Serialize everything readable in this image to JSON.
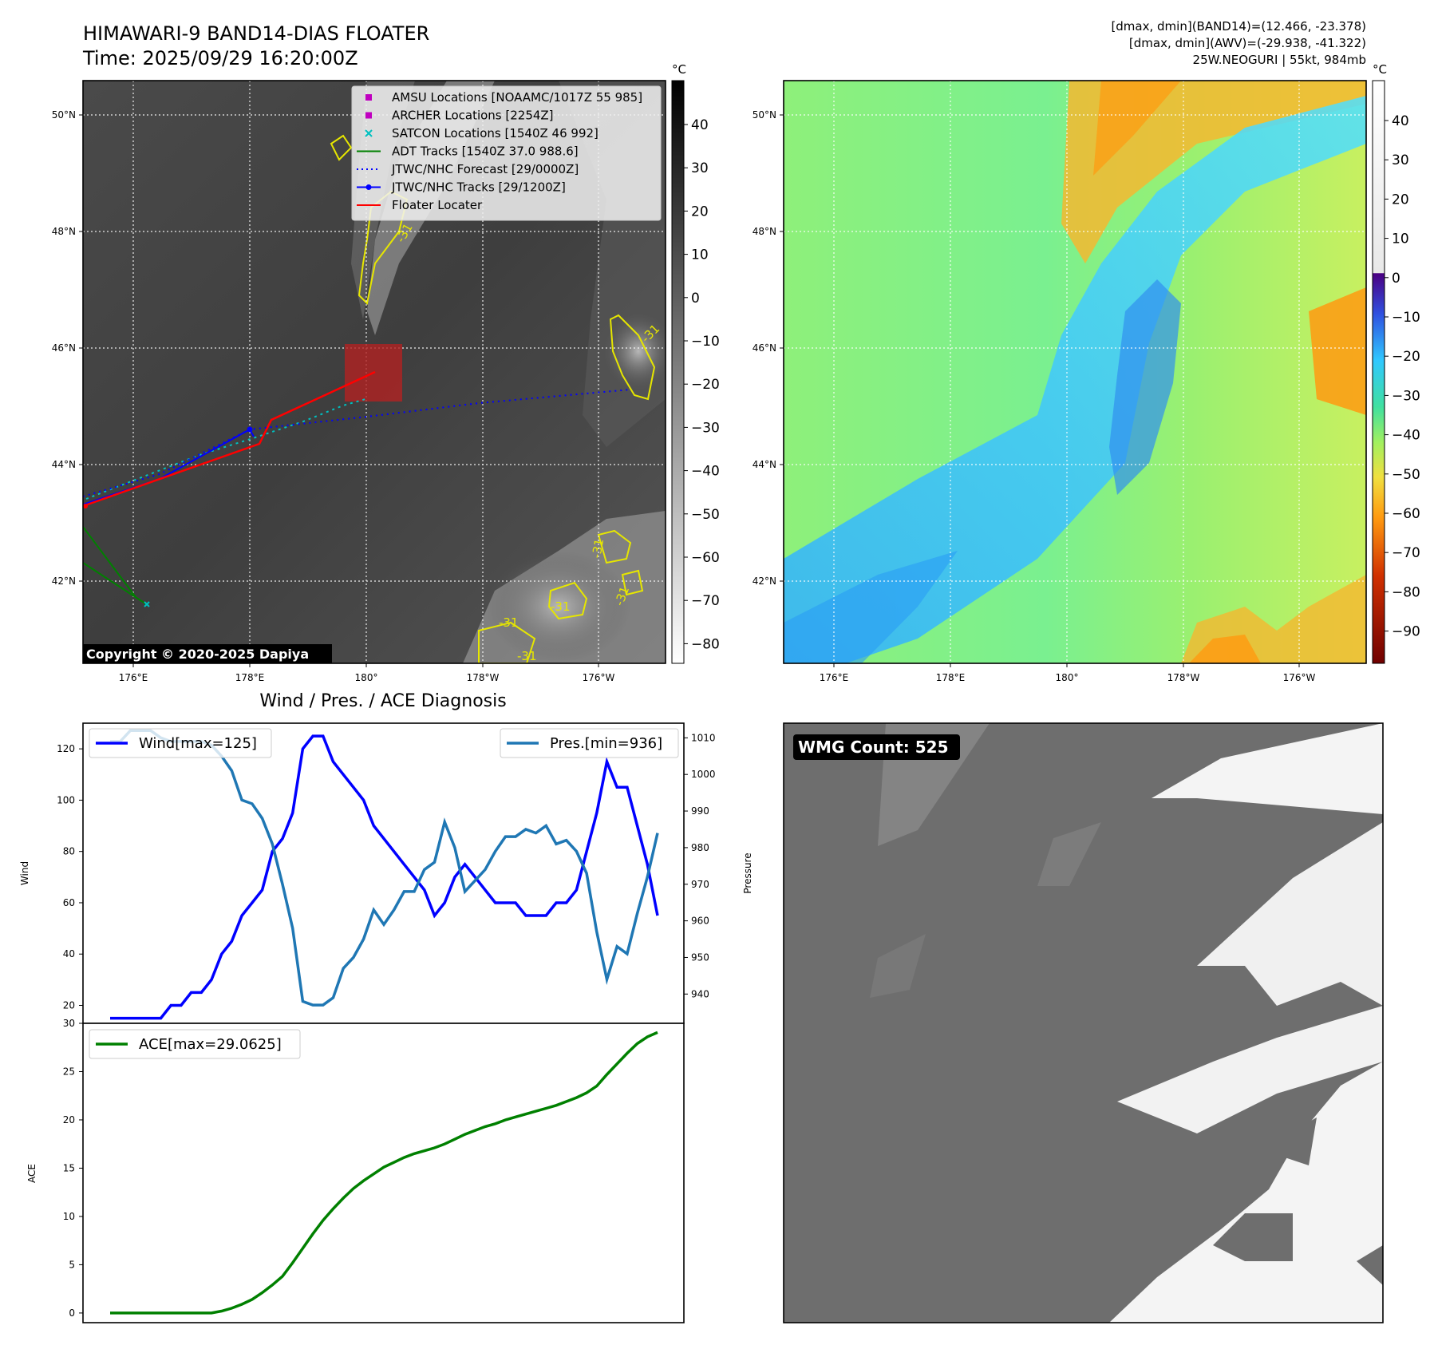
{
  "header": {
    "title_line1": "HIMAWARI-9 BAND14-DIAS FLOATER",
    "title_line2": "Time: 2025/09/29 16:20:00Z",
    "stats_line1": "[dmax, dmin](BAND14)=(12.466, -23.378)",
    "stats_line2": "[dmax, dmin](AWV)=(-29.938, -41.322)",
    "stats_line3": "25W.NEOGURI | 55kt, 984mb"
  },
  "ir_panel": {
    "lat_ticks": [
      "50°N",
      "48°N",
      "46°N",
      "44°N",
      "42°N"
    ],
    "lon_ticks": [
      "176°E",
      "178°E",
      "180°",
      "178°W",
      "176°W"
    ],
    "copyright": "Copyright © 2020-2025 Dapiya",
    "contour_label": "-31",
    "legend": [
      {
        "label": "AMSU Locations [NOAAMC/1017Z 55 985]",
        "color": "#c000c0",
        "marker": "square"
      },
      {
        "label": "ARCHER Locations [2254Z]",
        "color": "#c000c0",
        "marker": "square"
      },
      {
        "label": "SATCON Locations [1540Z 46 992]",
        "color": "#00c0c0",
        "marker": "x"
      },
      {
        "label": "ADT Tracks [1540Z 37.0 988.6]",
        "color": "#008000",
        "marker": "line"
      },
      {
        "label": "JTWC/NHC Forecast [29/0000Z]",
        "color": "#0000ff",
        "marker": "dotted"
      },
      {
        "label": "JTWC/NHC Tracks [29/1200Z]",
        "color": "#0000ff",
        "marker": "line-dot"
      },
      {
        "label": "Floater Locater",
        "color": "#ff0000",
        "marker": "line"
      }
    ],
    "colorbar": {
      "unit": "°C",
      "ticks": [
        40,
        30,
        20,
        10,
        0,
        -10,
        -20,
        -30,
        -40,
        -50,
        -60,
        -70,
        -80
      ]
    }
  },
  "wv_panel": {
    "lat_ticks": [
      "50°N",
      "48°N",
      "46°N",
      "44°N",
      "42°N"
    ],
    "lon_ticks": [
      "176°E",
      "178°E",
      "180°",
      "178°W",
      "176°W"
    ],
    "colorbar": {
      "unit": "°C",
      "ticks": [
        40,
        30,
        20,
        10,
        0,
        -10,
        -20,
        -30,
        -40,
        -50,
        -60,
        -70,
        -80,
        -90
      ]
    }
  },
  "chart_data": [
    {
      "type": "line",
      "title": "Wind / Pres. / ACE Diagnosis",
      "ylabel": "Wind",
      "ylabel_right": "Pressure",
      "ylim": [
        13,
        130
      ],
      "ylim_right": [
        932,
        1014
      ],
      "yticks": [
        20,
        40,
        60,
        80,
        100,
        120
      ],
      "yticks_right": [
        940,
        950,
        960,
        970,
        980,
        990,
        1000,
        1010
      ],
      "series": [
        {
          "name": "Wind[max=125]",
          "color": "#0000ff",
          "values": [
            15,
            15,
            15,
            15,
            15,
            15,
            20,
            20,
            25,
            25,
            30,
            40,
            45,
            55,
            60,
            65,
            80,
            85,
            95,
            120,
            125,
            125,
            115,
            110,
            105,
            100,
            90,
            85,
            80,
            75,
            70,
            65,
            55,
            60,
            70,
            75,
            70,
            65,
            60,
            60,
            60,
            55,
            55,
            55,
            60,
            60,
            65,
            80,
            95,
            115,
            105,
            105,
            90,
            75,
            55
          ]
        },
        {
          "name": "Pres.[min=936]",
          "color": "#1f77b4",
          "axis": "right",
          "values": [
            1009,
            1009,
            1012,
            1012,
            1012,
            1010,
            1009,
            1009,
            1009,
            1009,
            1008,
            1005,
            1001,
            993,
            992,
            988,
            981,
            970,
            958,
            938,
            937,
            937,
            939,
            947,
            950,
            955,
            963,
            959,
            963,
            968,
            968,
            974,
            976,
            987,
            980,
            968,
            971,
            974,
            979,
            983,
            983,
            985,
            984,
            986,
            981,
            982,
            979,
            973,
            957,
            944,
            953,
            951,
            962,
            972,
            984
          ]
        }
      ]
    },
    {
      "type": "line",
      "ylabel": "ACE",
      "ylim": [
        -1,
        30
      ],
      "yticks": [
        0,
        5,
        10,
        15,
        20,
        25,
        30
      ],
      "series": [
        {
          "name": "ACE[max=29.0625]",
          "color": "#008000",
          "values": [
            0,
            0,
            0,
            0,
            0,
            0,
            0,
            0,
            0,
            0,
            0,
            0.2,
            0.5,
            0.9,
            1.4,
            2.1,
            2.9,
            3.8,
            5.2,
            6.7,
            8.2,
            9.6,
            10.8,
            11.9,
            12.9,
            13.7,
            14.4,
            15.1,
            15.6,
            16.1,
            16.5,
            16.8,
            17.1,
            17.5,
            18.0,
            18.5,
            18.9,
            19.3,
            19.6,
            20.0,
            20.3,
            20.6,
            20.9,
            21.2,
            21.5,
            21.9,
            22.3,
            22.8,
            23.5,
            24.7,
            25.8,
            26.9,
            27.9,
            28.6,
            29.06
          ]
        }
      ]
    }
  ],
  "wmg_panel": {
    "label": "WMG Count: 525"
  }
}
